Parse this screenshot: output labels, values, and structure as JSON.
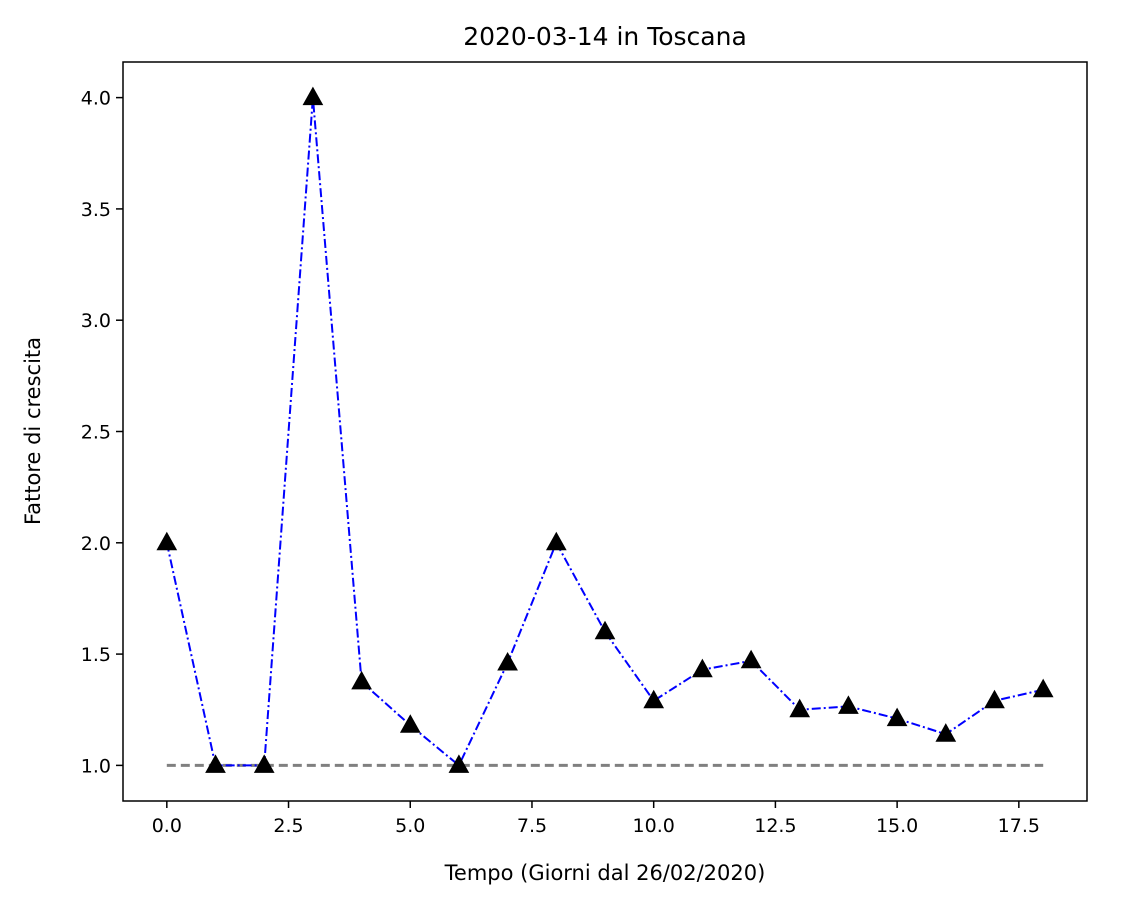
{
  "chart_data": {
    "type": "line",
    "title": "2020-03-14 in Toscana",
    "xlabel": "Tempo (Giorni dal 26/02/2020)",
    "ylabel": "Fattore di crescita",
    "xlim": [
      -0.9,
      18.9
    ],
    "ylim": [
      0.84,
      4.16
    ],
    "xticks": [
      0.0,
      2.5,
      5.0,
      7.5,
      10.0,
      12.5,
      15.0,
      17.5
    ],
    "xtick_labels": [
      "0.0",
      "2.5",
      "5.0",
      "7.5",
      "10.0",
      "12.5",
      "15.0",
      "17.5"
    ],
    "yticks": [
      1.0,
      1.5,
      2.0,
      2.5,
      3.0,
      3.5,
      4.0
    ],
    "ytick_labels": [
      "1.0",
      "1.5",
      "2.0",
      "2.5",
      "3.0",
      "3.5",
      "4.0"
    ],
    "grid": false,
    "series": [
      {
        "x": [
          0,
          1,
          2,
          3,
          4,
          5,
          6,
          7,
          8,
          9,
          10,
          11,
          12,
          13,
          14,
          15,
          16,
          17,
          18
        ],
        "values": [
          2.0,
          1.0,
          1.0,
          4.0,
          1.375,
          1.18,
          1.0,
          1.46,
          2.0,
          1.6,
          1.29,
          1.43,
          1.47,
          1.25,
          1.265,
          1.21,
          1.14,
          1.29,
          1.34
        ],
        "color": "#0000ff",
        "line_style": "dash-dot",
        "marker": "triangle",
        "marker_color": "#000000"
      },
      {
        "x": [
          0,
          18
        ],
        "values": [
          1.0,
          1.0
        ],
        "color": "#808080",
        "line_style": "dashed"
      }
    ]
  }
}
